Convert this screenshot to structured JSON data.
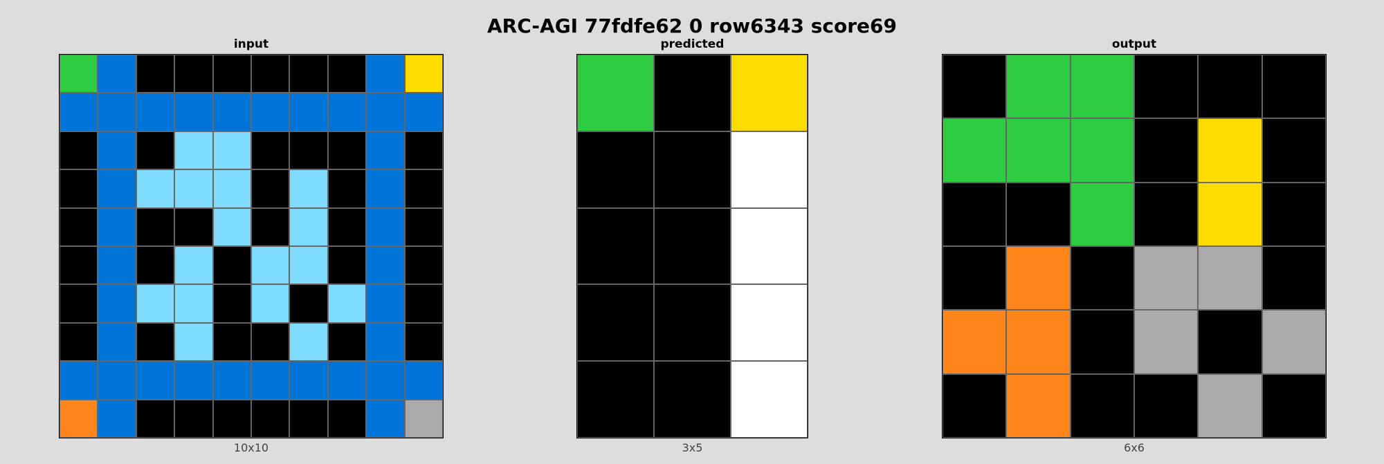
{
  "title": "ARC-AGI 77fdfe62 0 row6343 score69",
  "palette": {
    "0": "#000000",
    "1": "#0074D9",
    "3": "#2ECC40",
    "4": "#FFDC00",
    "5": "#AAAAAA",
    "7": "#FF851B",
    "8": "#7FDBFF",
    "w": "#FFFFFF"
  },
  "panels": [
    {
      "id": "input",
      "label": "input",
      "dims": "10x10",
      "rows": 10,
      "cols": 10,
      "grid": [
        [
          "3",
          "1",
          "0",
          "0",
          "0",
          "0",
          "0",
          "0",
          "1",
          "4"
        ],
        [
          "1",
          "1",
          "1",
          "1",
          "1",
          "1",
          "1",
          "1",
          "1",
          "1"
        ],
        [
          "0",
          "1",
          "0",
          "8",
          "8",
          "0",
          "0",
          "0",
          "1",
          "0"
        ],
        [
          "0",
          "1",
          "8",
          "8",
          "8",
          "0",
          "8",
          "0",
          "1",
          "0"
        ],
        [
          "0",
          "1",
          "0",
          "0",
          "8",
          "0",
          "8",
          "0",
          "1",
          "0"
        ],
        [
          "0",
          "1",
          "0",
          "8",
          "0",
          "8",
          "8",
          "0",
          "1",
          "0"
        ],
        [
          "0",
          "1",
          "8",
          "8",
          "0",
          "8",
          "0",
          "8",
          "1",
          "0"
        ],
        [
          "0",
          "1",
          "0",
          "8",
          "0",
          "0",
          "8",
          "0",
          "1",
          "0"
        ],
        [
          "1",
          "1",
          "1",
          "1",
          "1",
          "1",
          "1",
          "1",
          "1",
          "1"
        ],
        [
          "7",
          "1",
          "0",
          "0",
          "0",
          "0",
          "0",
          "0",
          "1",
          "5"
        ]
      ]
    },
    {
      "id": "predicted",
      "label": "predicted",
      "dims": "3x5",
      "rows": 5,
      "cols": 3,
      "grid": [
        [
          "3",
          "0",
          "4"
        ],
        [
          "0",
          "0",
          "w"
        ],
        [
          "0",
          "0",
          "w"
        ],
        [
          "0",
          "0",
          "w"
        ],
        [
          "0",
          "0",
          "w"
        ]
      ]
    },
    {
      "id": "output",
      "label": "output",
      "dims": "6x6",
      "rows": 6,
      "cols": 6,
      "grid": [
        [
          "0",
          "3",
          "3",
          "0",
          "0",
          "0"
        ],
        [
          "3",
          "3",
          "3",
          "0",
          "4",
          "0"
        ],
        [
          "0",
          "0",
          "3",
          "0",
          "4",
          "0"
        ],
        [
          "0",
          "7",
          "0",
          "5",
          "5",
          "0"
        ],
        [
          "7",
          "7",
          "0",
          "5",
          "0",
          "5"
        ],
        [
          "0",
          "7",
          "0",
          "0",
          "5",
          "0"
        ]
      ]
    }
  ]
}
